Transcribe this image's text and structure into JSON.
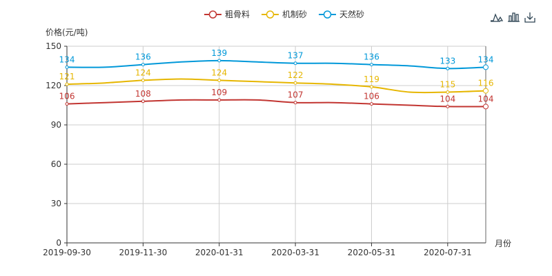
{
  "toolbox": {
    "icons": [
      "line-chart-icon",
      "bar-chart-icon",
      "download-icon"
    ]
  },
  "chart_data": {
    "type": "line",
    "ylabel": "价格(元/吨)",
    "xlabel": "月份",
    "ylim": [
      0,
      150
    ],
    "yticks": [
      0,
      30,
      60,
      90,
      120,
      150
    ],
    "grid": true,
    "legend_position": "top-center",
    "x": [
      "2019-09-30",
      "2019-10-31",
      "2019-11-30",
      "2019-12-31",
      "2020-01-31",
      "2020-02-29",
      "2020-03-31",
      "2020-04-30",
      "2020-05-31",
      "2020-06-30",
      "2020-07-31",
      "2020-08-31"
    ],
    "xtick_labels": [
      "2019-09-30",
      "2019-11-30",
      "2020-01-31",
      "2020-03-31",
      "2020-05-31",
      "2020-07-31"
    ],
    "series": [
      {
        "name": "粗骨料",
        "color": "#c23531",
        "values": [
          106,
          107,
          108,
          109,
          109,
          109,
          107,
          107,
          106,
          105,
          104,
          104
        ]
      },
      {
        "name": "机制砂",
        "color": "#e6b600",
        "values": [
          121,
          122,
          124,
          125,
          124,
          123,
          122,
          121,
          119,
          115,
          115,
          116
        ]
      },
      {
        "name": "天然砂",
        "color": "#0098d9",
        "values": [
          134,
          134,
          136,
          138,
          139,
          138,
          137,
          137,
          136,
          135,
          133,
          134
        ]
      }
    ]
  }
}
